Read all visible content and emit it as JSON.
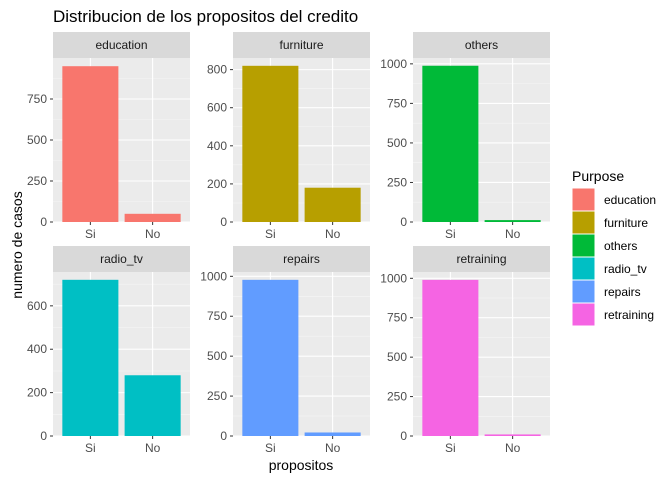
{
  "chart_data": {
    "type": "bar",
    "title": "Distribucion de los propositos del credito",
    "xlabel": "propositos",
    "ylabel": "numero de casos",
    "categories": [
      "Si",
      "No"
    ],
    "legend": {
      "title": "Purpose",
      "placement": "right"
    },
    "grid": true,
    "facets": [
      {
        "name": "education",
        "color": "#F8766D",
        "values": [
          950,
          50
        ],
        "ylim": [
          0,
          1000
        ],
        "ticks": [
          0,
          250,
          500,
          750
        ]
      },
      {
        "name": "furniture",
        "color": "#B79F00",
        "values": [
          820,
          180
        ],
        "ylim": [
          0,
          861
        ],
        "ticks": [
          0,
          200,
          400,
          600,
          800
        ]
      },
      {
        "name": "others",
        "color": "#00BA38",
        "values": [
          988,
          12
        ],
        "ylim": [
          0,
          1037
        ],
        "ticks": [
          0,
          250,
          500,
          750,
          1000
        ]
      },
      {
        "name": "radio_tv",
        "color": "#00BFC4",
        "values": [
          720,
          280
        ],
        "ylim": [
          0,
          756
        ],
        "ticks": [
          0,
          200,
          400,
          600
        ]
      },
      {
        "name": "repairs",
        "color": "#619CFF",
        "values": [
          978,
          22
        ],
        "ylim": [
          0,
          1027
        ],
        "ticks": [
          0,
          250,
          500,
          750,
          1000
        ]
      },
      {
        "name": "retraining",
        "color": "#F564E3",
        "values": [
          990,
          10
        ],
        "ylim": [
          0,
          1040
        ],
        "ticks": [
          0,
          250,
          500,
          750,
          1000
        ]
      }
    ]
  }
}
